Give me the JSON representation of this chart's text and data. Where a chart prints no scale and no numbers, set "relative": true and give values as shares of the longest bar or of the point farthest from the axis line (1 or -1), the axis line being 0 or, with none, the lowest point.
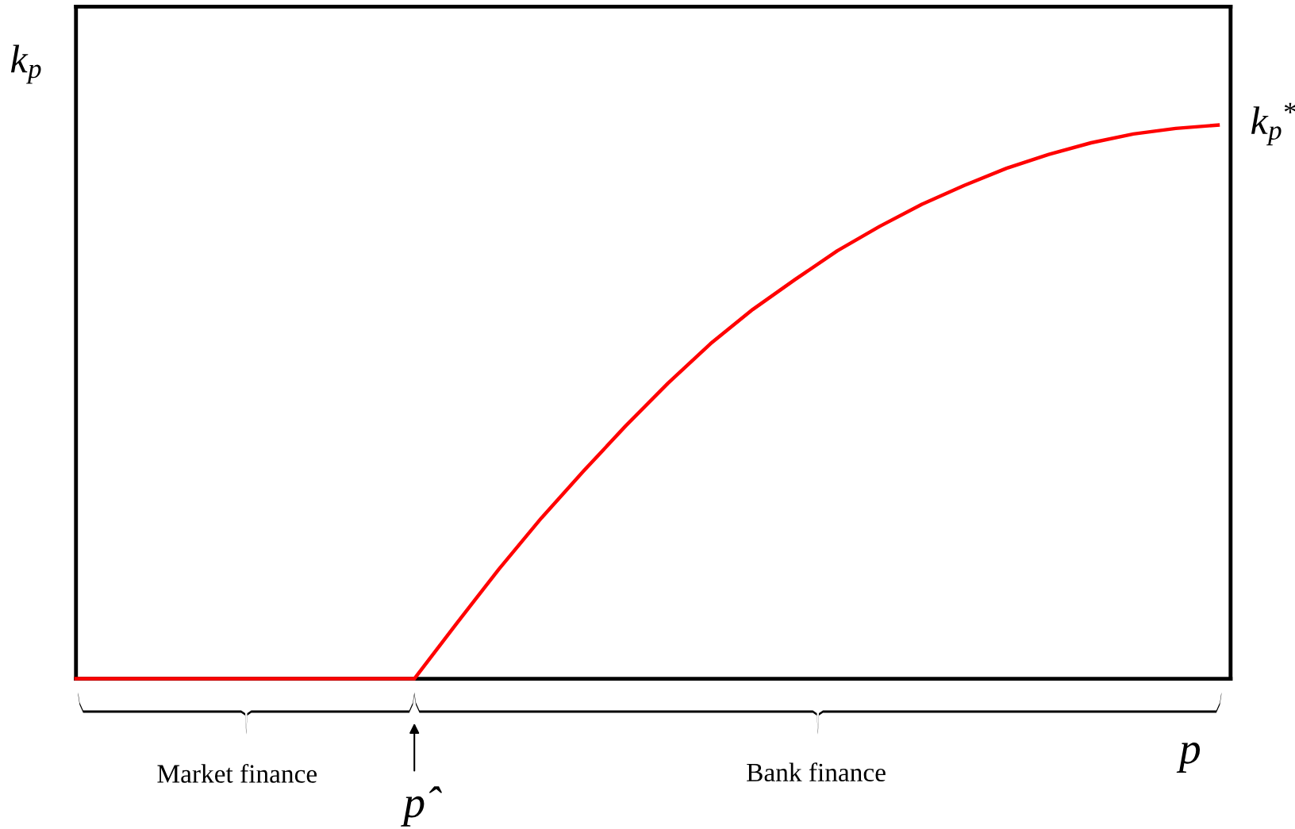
{
  "chart_data": {
    "type": "line",
    "relative": true,
    "ylabel": "k$_{p}$",
    "xlabel": "p",
    "categories": [
      null,
      null,
      null,
      null,
      null,
      null,
      null,
      null,
      null,
      null,
      null,
      null,
      null,
      null,
      null,
      null,
      null,
      null,
      null,
      null,
      null,
      null,
      null,
      null,
      null,
      null,
      null,
      null
    ],
    "series": [
      {
        "color": "#ff0000",
        "values": [
          0,
          0,
          0,
          0,
          0,
          0,
          0,
          0,
          0,
          0.1,
          0.198,
          0.29,
          0.375,
          0.457,
          0.534,
          0.605,
          0.667,
          0.721,
          0.773,
          0.817,
          0.857,
          0.891,
          0.922,
          0.947,
          0.968,
          0.984,
          0.994,
          1.0
        ]
      }
    ],
    "annotations": [
      "k$_{p}$$^{*}$",
      "p̂",
      "Market finance",
      "Bank finance"
    ],
    "legend": false,
    "marker": "none",
    "line_style": "solid"
  }
}
